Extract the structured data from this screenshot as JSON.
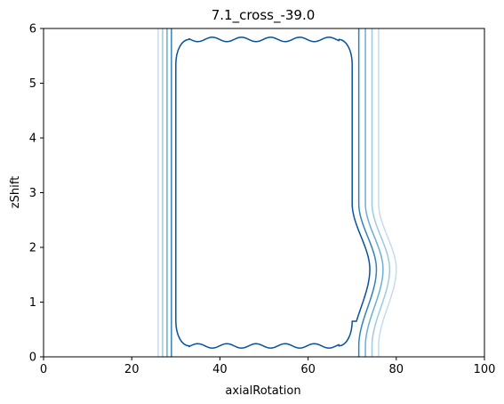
{
  "chart_data": {
    "type": "contour",
    "title": "7.1_cross_-39.0",
    "xlabel": "axialRotation",
    "ylabel": "zShift",
    "xlim": [
      0,
      100
    ],
    "ylim": [
      0,
      6
    ],
    "xticks": [
      "0",
      "20",
      "40",
      "60",
      "80",
      "100"
    ],
    "yticks": [
      "0",
      "1",
      "2",
      "3",
      "4",
      "5",
      "6"
    ],
    "grid": false,
    "levels": [
      {
        "color": "#08519c",
        "left_x": 30,
        "right_x": 70,
        "top_y": 5.8,
        "bottom_y": 0.2,
        "bulge_peak_x": 74.0,
        "ripple_amplitude": 0.04,
        "open_top": false
      },
      {
        "color": "#3182bd",
        "left_x": 29,
        "right_x": 71.5,
        "bulge_peak_x": 75.5,
        "open_top": true
      },
      {
        "color": "#6baed6",
        "left_x": 28,
        "right_x": 73,
        "bulge_peak_x": 77.0,
        "open_top": true
      },
      {
        "color": "#9ecae1",
        "left_x": 27,
        "right_x": 74.5,
        "bulge_peak_x": 78.5,
        "open_top": true
      },
      {
        "color": "#c6dbef",
        "left_x": 26,
        "right_x": 76,
        "bulge_peak_x": 80.0,
        "open_top": true
      }
    ],
    "bulge_y_range": [
      0.2,
      2.8
    ],
    "bulge_peak_y": 1.6
  }
}
